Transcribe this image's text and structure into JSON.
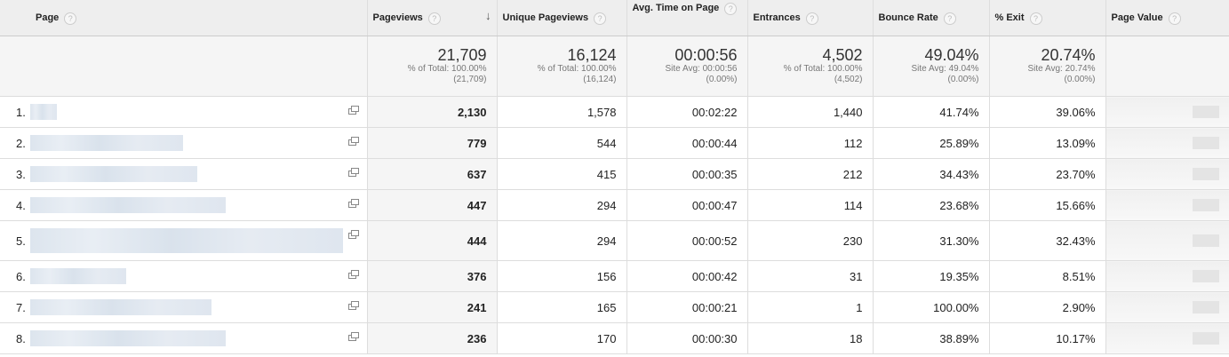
{
  "headers": {
    "page": "Page",
    "pageviews": "Pageviews",
    "unique": "Unique Pageviews",
    "avg_time": "Avg. Time on Page",
    "entrances": "Entrances",
    "bounce": "Bounce Rate",
    "exit": "% Exit",
    "page_value": "Page Value"
  },
  "summary": {
    "pageviews": {
      "value": "21,709",
      "line1": "% of Total: 100.00%",
      "line2": "(21,709)"
    },
    "unique": {
      "value": "16,124",
      "line1": "% of Total: 100.00%",
      "line2": "(16,124)"
    },
    "avg_time": {
      "value": "00:00:56",
      "line1": "Site Avg: 00:00:56",
      "line2": "(0.00%)"
    },
    "entrances": {
      "value": "4,502",
      "line1": "% of Total: 100.00%",
      "line2": "(4,502)"
    },
    "bounce": {
      "value": "49.04%",
      "line1": "Site Avg: 49.04%",
      "line2": "(0.00%)"
    },
    "exit": {
      "value": "20.74%",
      "line1": "Site Avg: 20.74%",
      "line2": "(0.00%)"
    }
  },
  "rows": [
    {
      "idx": "1.",
      "pageviews": "2,130",
      "unique": "1,578",
      "avg_time": "00:02:22",
      "entrances": "1,440",
      "bounce": "41.74%",
      "exit": "39.06%"
    },
    {
      "idx": "2.",
      "pageviews": "779",
      "unique": "544",
      "avg_time": "00:00:44",
      "entrances": "112",
      "bounce": "25.89%",
      "exit": "13.09%"
    },
    {
      "idx": "3.",
      "pageviews": "637",
      "unique": "415",
      "avg_time": "00:00:35",
      "entrances": "212",
      "bounce": "34.43%",
      "exit": "23.70%"
    },
    {
      "idx": "4.",
      "pageviews": "447",
      "unique": "294",
      "avg_time": "00:00:47",
      "entrances": "114",
      "bounce": "23.68%",
      "exit": "15.66%"
    },
    {
      "idx": "5.",
      "pageviews": "444",
      "unique": "294",
      "avg_time": "00:00:52",
      "entrances": "230",
      "bounce": "31.30%",
      "exit": "32.43%"
    },
    {
      "idx": "6.",
      "pageviews": "376",
      "unique": "156",
      "avg_time": "00:00:42",
      "entrances": "31",
      "bounce": "19.35%",
      "exit": "8.51%"
    },
    {
      "idx": "7.",
      "pageviews": "241",
      "unique": "165",
      "avg_time": "00:00:21",
      "entrances": "1",
      "bounce": "100.00%",
      "exit": "2.90%"
    },
    {
      "idx": "8.",
      "pageviews": "236",
      "unique": "170",
      "avg_time": "00:00:30",
      "entrances": "18",
      "bounce": "38.89%",
      "exit": "10.17%"
    }
  ]
}
